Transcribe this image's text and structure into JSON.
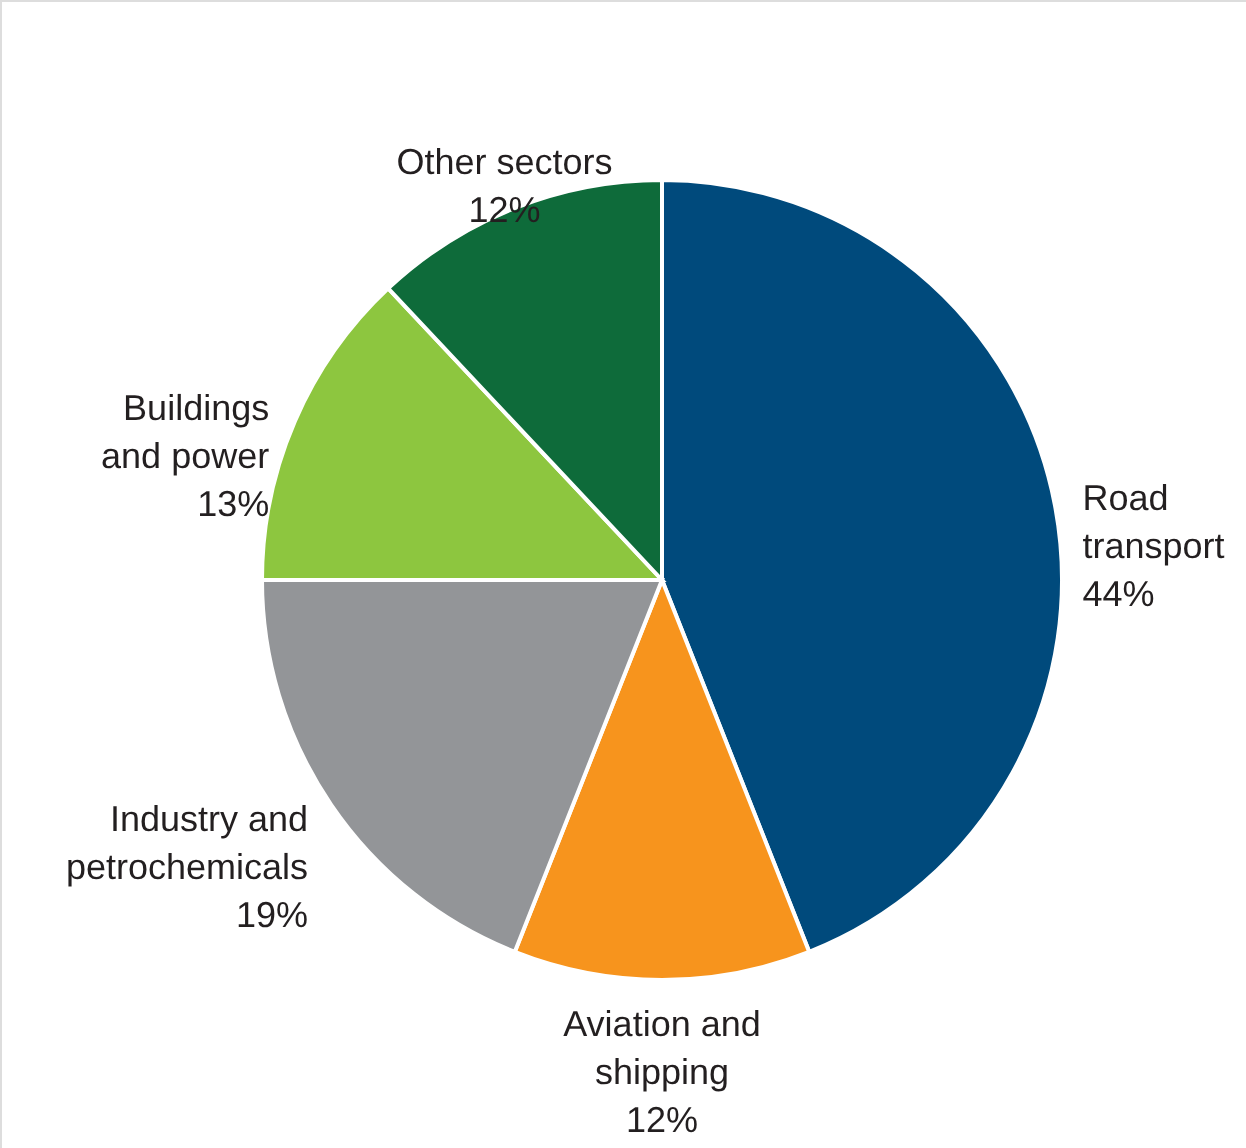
{
  "chart_data": {
    "type": "pie",
    "categories": [
      "Road\ntransport",
      "Aviation and\nshipping",
      "Industry and\npetrochemicals",
      "Buildings\nand power",
      "Other sectors"
    ],
    "values": [
      44,
      12,
      19,
      13,
      12
    ],
    "colors": [
      "#004a7c",
      "#f7941d",
      "#939598",
      "#8dc63f",
      "#0e6b3a"
    ],
    "value_labels": [
      "44%",
      "12%",
      "19%",
      "13%",
      "12%"
    ]
  }
}
